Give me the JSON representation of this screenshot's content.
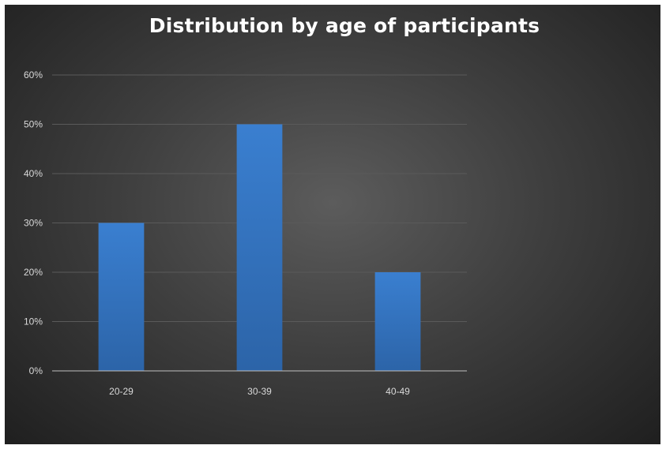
{
  "chart_data": {
    "type": "bar",
    "title": "Distribution by age of participants",
    "categories": [
      "20-29",
      "30-39",
      "40-49"
    ],
    "values": [
      30,
      50,
      20
    ],
    "ylim": [
      0,
      60
    ],
    "yticks": [
      0,
      10,
      20,
      30,
      40,
      50,
      60
    ],
    "ytick_labels": [
      "0%",
      "10%",
      "20%",
      "30%",
      "40%",
      "50%",
      "60%"
    ],
    "xlabel": "",
    "ylabel": "",
    "grid": true,
    "legend": "none",
    "colors": {
      "bar": "#3a7fd0",
      "bar_dark": "#2c64a8",
      "grid": "#5a5a5a",
      "axis": "#bfbfbf",
      "text": "#d9d9d9"
    }
  }
}
